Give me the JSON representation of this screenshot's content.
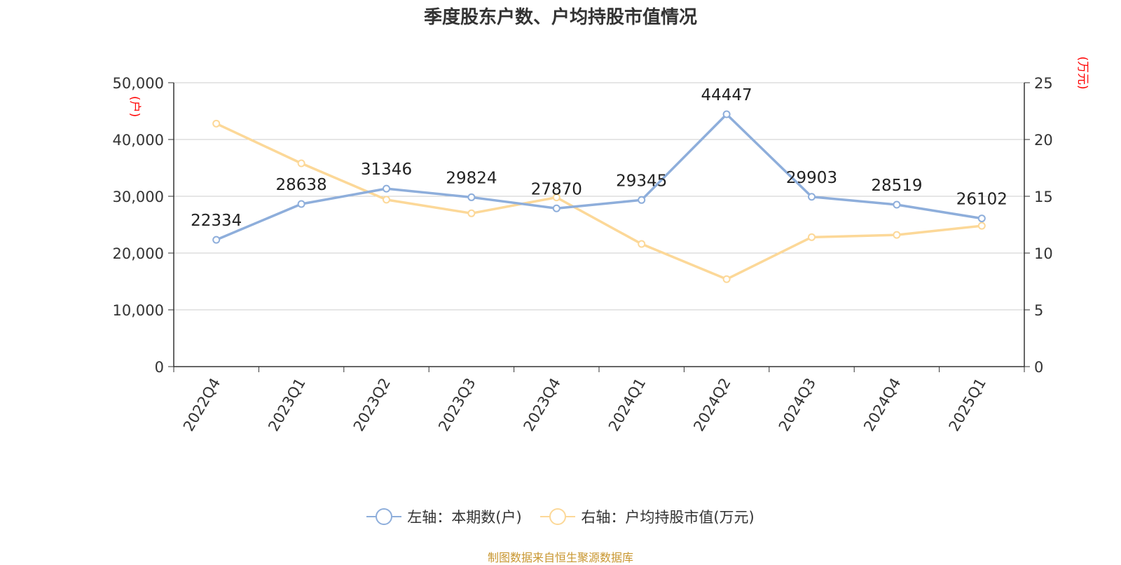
{
  "colors": {
    "left_series": "#8eaedb",
    "right_series": "#fcd898",
    "axis_unit": "#ff0000",
    "source_text": "#c8962f"
  },
  "source": "制图数据来自恒生聚源数据库",
  "chart_data": {
    "type": "line",
    "title": "季度股东户数、户均持股市值情况",
    "categories": [
      "2022Q4",
      "2023Q1",
      "2023Q2",
      "2023Q3",
      "2023Q4",
      "2024Q1",
      "2024Q2",
      "2024Q3",
      "2024Q4",
      "2025Q1"
    ],
    "y_left": {
      "unit": "(户)",
      "min": 0,
      "max": 50000,
      "ticks": [
        "0",
        "10,000",
        "20,000",
        "30,000",
        "40,000",
        "50,000"
      ]
    },
    "y_right": {
      "unit": "(万元)",
      "min": 0,
      "max": 25,
      "ticks": [
        "0",
        "5",
        "10",
        "15",
        "20",
        "25"
      ]
    },
    "grid": true,
    "legend_position": "bottom",
    "series": [
      {
        "name": "左轴：本期数(户)",
        "axis": "left",
        "values": [
          22334,
          28638,
          31346,
          29824,
          27870,
          29345,
          44447,
          29903,
          28519,
          26102
        ],
        "labels": [
          "22334",
          "28638",
          "31346",
          "29824",
          "27870",
          "29345",
          "44447",
          "29903",
          "28519",
          "26102"
        ]
      },
      {
        "name": "右轴：户均持股市值(万元)",
        "axis": "right",
        "values": [
          21.4,
          17.9,
          14.7,
          13.5,
          14.9,
          10.8,
          7.7,
          11.4,
          11.6,
          12.4
        ]
      }
    ]
  }
}
